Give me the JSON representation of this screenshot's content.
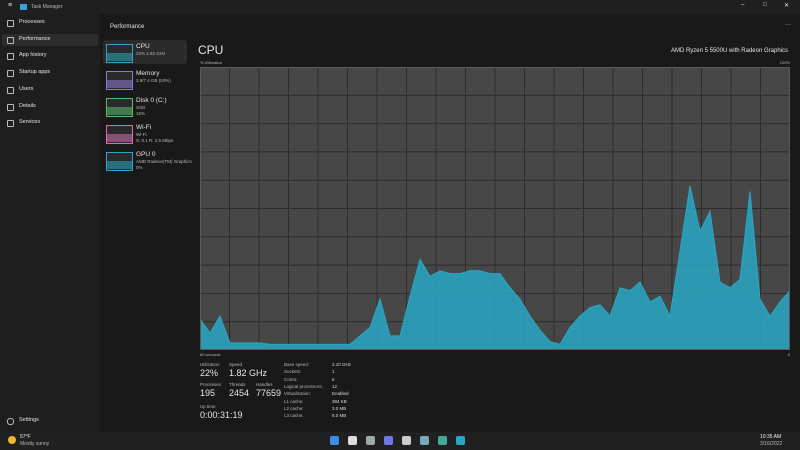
{
  "window": {
    "title": "Task Manager"
  },
  "nav": {
    "items": [
      "Processes",
      "Performance",
      "App history",
      "Startup apps",
      "Users",
      "Details",
      "Services"
    ],
    "settings": "Settings"
  },
  "header": {
    "title": "Performance"
  },
  "devices": [
    {
      "name": "CPU",
      "lines": [
        "22% 1.82 GHz"
      ]
    },
    {
      "name": "Memory",
      "lines": [
        "3.9/7.4 GB (53%)"
      ]
    },
    {
      "name": "Disk 0 (C:)",
      "lines": [
        "SSD",
        "16%"
      ]
    },
    {
      "name": "Wi-Fi",
      "lines": [
        "Wi-Fi",
        "S: 0.1 R: 2.5 Mbps"
      ]
    },
    {
      "name": "GPU 0",
      "lines": [
        "AMD Radeon(TM) Graphics",
        "0%"
      ]
    }
  ],
  "cpu": {
    "title": "CPU",
    "model": "AMD Ryzen 5 5500U with Radeon Graphics"
  },
  "chart_data": {
    "type": "area",
    "ylabel": "% Utilization",
    "ymax_label": "100%",
    "xstart_label": "60 seconds",
    "xend_label": "0",
    "ylim": [
      0,
      100
    ],
    "color": "#29a7c4",
    "values": [
      11,
      6,
      12,
      2.5,
      2.5,
      2.5,
      2.5,
      2,
      2,
      2,
      2,
      2,
      2,
      2,
      2,
      2,
      5,
      8,
      18,
      5,
      5,
      19,
      32,
      26,
      28,
      27,
      27,
      28,
      28,
      27,
      27,
      22,
      18,
      12,
      7,
      3,
      2,
      8,
      12,
      15,
      16,
      12,
      22,
      21,
      24,
      17,
      19,
      12,
      35,
      58,
      42,
      49,
      24,
      22,
      25,
      56,
      18,
      12,
      17,
      21
    ]
  },
  "stats": [
    {
      "label": "Utilization",
      "value": "22%"
    },
    {
      "label": "Speed",
      "value": "1.82 GHz"
    },
    {
      "label": "Processes",
      "value": "195"
    },
    {
      "label": "Threads",
      "value": "2454"
    },
    {
      "label": "Handles",
      "value": "77659"
    },
    {
      "label": "Up time",
      "value": "0:00:31:19"
    }
  ],
  "specs": [
    {
      "label": "Base speed:",
      "value": "2.10 GHz"
    },
    {
      "label": "Sockets:",
      "value": "1"
    },
    {
      "label": "Cores:",
      "value": "6"
    },
    {
      "label": "Logical processors:",
      "value": "12"
    },
    {
      "label": "Virtualization:",
      "value": "Enabled"
    },
    {
      "label": "L1 cache:",
      "value": "384 KB"
    },
    {
      "label": "L2 cache:",
      "value": "3.0 MB"
    },
    {
      "label": "L3 cache:",
      "value": "8.0 MB"
    }
  ],
  "taskbar": {
    "temp": "57°F",
    "condition": "Mostly sunny",
    "time": "10:35 AM",
    "date": "3/16/2022"
  }
}
